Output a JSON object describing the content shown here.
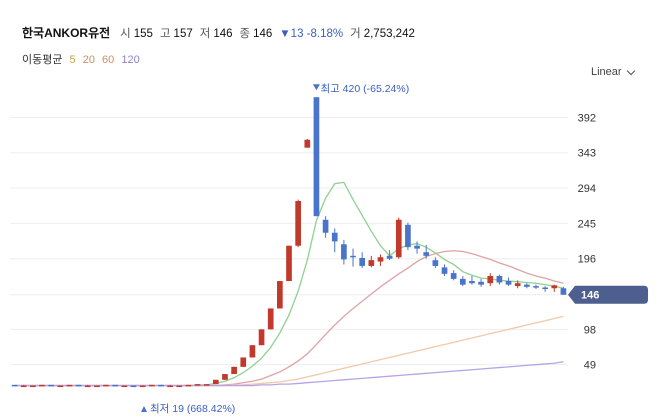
{
  "header": {
    "stock_name": "한국ANKOR유전",
    "open_label": "시",
    "open_value": "155",
    "high_label": "고",
    "high_value": "157",
    "low_label": "저",
    "low_value": "146",
    "close_label": "종",
    "close_value": "146",
    "change_text": "▼13 -8.18%",
    "volume_label": "거",
    "volume_value": "2,753,242"
  },
  "ma_legend": {
    "title": "이동평균",
    "ma5": "5",
    "ma20": "20",
    "ma60": "60",
    "ma120": "120"
  },
  "scale_select": {
    "value": "Linear"
  },
  "colors": {
    "up": "#c0392b",
    "down": "#4a74c9",
    "ma5": "#8fd08f",
    "ma20": "#e0a3a3",
    "ma60": "#f2c9a8",
    "ma120": "#b6a3e6",
    "last_badge": "#4d5f8e"
  },
  "chart_data": {
    "type": "candlestick",
    "y_ticks": [
      49,
      98,
      146,
      196,
      245,
      294,
      343,
      392
    ],
    "ylim": [
      0,
      430
    ],
    "grid": true,
    "last_price": 146,
    "last_price_label": "146",
    "max_annotation": "최고 420 (-65.24%)",
    "min_annotation": "최저 19 (668.42%)",
    "candles": [
      {
        "o": 21,
        "h": 21,
        "l": 20,
        "c": 20
      },
      {
        "o": 20,
        "h": 21,
        "l": 20,
        "c": 20
      },
      {
        "o": 20,
        "h": 20,
        "l": 19,
        "c": 20
      },
      {
        "o": 20,
        "h": 21,
        "l": 20,
        "c": 21
      },
      {
        "o": 21,
        "h": 21,
        "l": 20,
        "c": 20
      },
      {
        "o": 20,
        "h": 20,
        "l": 20,
        "c": 20
      },
      {
        "o": 20,
        "h": 21,
        "l": 20,
        "c": 21
      },
      {
        "o": 21,
        "h": 21,
        "l": 20,
        "c": 20
      },
      {
        "o": 20,
        "h": 21,
        "l": 20,
        "c": 20
      },
      {
        "o": 20,
        "h": 20,
        "l": 20,
        "c": 20
      },
      {
        "o": 20,
        "h": 21,
        "l": 20,
        "c": 21
      },
      {
        "o": 21,
        "h": 21,
        "l": 20,
        "c": 20
      },
      {
        "o": 20,
        "h": 20,
        "l": 19,
        "c": 20
      },
      {
        "o": 20,
        "h": 20,
        "l": 19,
        "c": 19
      },
      {
        "o": 19,
        "h": 20,
        "l": 19,
        "c": 20
      },
      {
        "o": 20,
        "h": 21,
        "l": 20,
        "c": 21
      },
      {
        "o": 21,
        "h": 21,
        "l": 20,
        "c": 20
      },
      {
        "o": 20,
        "h": 21,
        "l": 20,
        "c": 20
      },
      {
        "o": 20,
        "h": 20,
        "l": 20,
        "c": 20
      },
      {
        "o": 20,
        "h": 21,
        "l": 20,
        "c": 21
      },
      {
        "o": 21,
        "h": 22,
        "l": 21,
        "c": 22
      },
      {
        "o": 22,
        "h": 22,
        "l": 22,
        "c": 22
      },
      {
        "o": 22,
        "h": 28,
        "l": 22,
        "c": 28
      },
      {
        "o": 28,
        "h": 36,
        "l": 28,
        "c": 36
      },
      {
        "o": 36,
        "h": 46,
        "l": 36,
        "c": 46
      },
      {
        "o": 46,
        "h": 59,
        "l": 46,
        "c": 59
      },
      {
        "o": 59,
        "h": 76,
        "l": 59,
        "c": 76
      },
      {
        "o": 76,
        "h": 98,
        "l": 76,
        "c": 98
      },
      {
        "o": 98,
        "h": 127,
        "l": 98,
        "c": 127
      },
      {
        "o": 127,
        "h": 165,
        "l": 127,
        "c": 165
      },
      {
        "o": 165,
        "h": 214,
        "l": 165,
        "c": 214
      },
      {
        "o": 214,
        "h": 278,
        "l": 212,
        "c": 276
      },
      {
        "o": 350,
        "h": 362,
        "l": 350,
        "c": 361
      },
      {
        "o": 420,
        "h": 420,
        "l": 255,
        "c": 255
      },
      {
        "o": 250,
        "h": 255,
        "l": 225,
        "c": 232
      },
      {
        "o": 232,
        "h": 238,
        "l": 205,
        "c": 220
      },
      {
        "o": 216,
        "h": 222,
        "l": 188,
        "c": 195
      },
      {
        "o": 200,
        "h": 210,
        "l": 185,
        "c": 198
      },
      {
        "o": 197,
        "h": 205,
        "l": 183,
        "c": 186
      },
      {
        "o": 186,
        "h": 200,
        "l": 184,
        "c": 194
      },
      {
        "o": 192,
        "h": 202,
        "l": 186,
        "c": 198
      },
      {
        "o": 200,
        "h": 208,
        "l": 194,
        "c": 196
      },
      {
        "o": 198,
        "h": 253,
        "l": 196,
        "c": 250
      },
      {
        "o": 243,
        "h": 246,
        "l": 208,
        "c": 212
      },
      {
        "o": 214,
        "h": 220,
        "l": 203,
        "c": 210
      },
      {
        "o": 205,
        "h": 215,
        "l": 196,
        "c": 200
      },
      {
        "o": 194,
        "h": 198,
        "l": 183,
        "c": 186
      },
      {
        "o": 184,
        "h": 188,
        "l": 172,
        "c": 175
      },
      {
        "o": 176,
        "h": 180,
        "l": 166,
        "c": 168
      },
      {
        "o": 168,
        "h": 172,
        "l": 158,
        "c": 160
      },
      {
        "o": 165,
        "h": 172,
        "l": 160,
        "c": 162
      },
      {
        "o": 164,
        "h": 168,
        "l": 157,
        "c": 160
      },
      {
        "o": 162,
        "h": 176,
        "l": 158,
        "c": 172
      },
      {
        "o": 172,
        "h": 174,
        "l": 160,
        "c": 163
      },
      {
        "o": 165,
        "h": 170,
        "l": 158,
        "c": 160
      },
      {
        "o": 158,
        "h": 166,
        "l": 155,
        "c": 162
      },
      {
        "o": 160,
        "h": 162,
        "l": 155,
        "c": 157
      },
      {
        "o": 158,
        "h": 160,
        "l": 154,
        "c": 156
      },
      {
        "o": 156,
        "h": 158,
        "l": 150,
        "c": 155
      },
      {
        "o": 155,
        "h": 160,
        "l": 150,
        "c": 159
      },
      {
        "o": 155,
        "h": 157,
        "l": 146,
        "c": 146
      }
    ],
    "series": [
      {
        "name": "5",
        "values": [
          20,
          20,
          20,
          20,
          20,
          20,
          20,
          20,
          20,
          20,
          20,
          20,
          20,
          20,
          20,
          20,
          20,
          20,
          20,
          20,
          21,
          21,
          23,
          26,
          31,
          38,
          47,
          58,
          73,
          93,
          118,
          151,
          194,
          249,
          280,
          300,
          302,
          278,
          256,
          234,
          214,
          200,
          210,
          215,
          217,
          212,
          204,
          195,
          188,
          178,
          173,
          169,
          168,
          166,
          165,
          164,
          163,
          162,
          160,
          158,
          155
        ]
      },
      {
        "name": "20",
        "values": [
          20,
          20,
          20,
          20,
          20,
          20,
          20,
          20,
          20,
          20,
          20,
          20,
          20,
          20,
          20,
          20,
          20,
          20,
          20,
          20,
          20,
          20,
          20,
          21,
          22,
          24,
          26,
          29,
          34,
          39,
          46,
          54,
          64,
          77,
          91,
          104,
          116,
          127,
          137,
          147,
          157,
          166,
          175,
          183,
          192,
          199,
          203,
          206,
          207,
          206,
          203,
          199,
          195,
          190,
          186,
          181,
          176,
          172,
          169,
          165,
          162
        ]
      },
      {
        "name": "60",
        "values": [
          20,
          20,
          20,
          20,
          20,
          20,
          20,
          20,
          20,
          20,
          20,
          20,
          20,
          20,
          20,
          20,
          20,
          20,
          20,
          20,
          20,
          20,
          20,
          20,
          21,
          21,
          22,
          23,
          24,
          25,
          27,
          29,
          32,
          35,
          38,
          41,
          44,
          47,
          50,
          53,
          56,
          59,
          62,
          65,
          68,
          71,
          74,
          77,
          80,
          83,
          86,
          89,
          92,
          95,
          98,
          101,
          104,
          107,
          110,
          113,
          116
        ]
      },
      {
        "name": "120",
        "values": [
          20,
          20,
          20,
          20,
          20,
          20,
          20,
          20,
          20,
          20,
          20,
          20,
          20,
          20,
          20,
          20,
          20,
          20,
          20,
          20,
          20,
          20,
          20,
          20,
          20,
          20,
          20,
          21,
          21,
          22,
          22,
          23,
          24,
          25,
          26,
          27,
          28,
          29,
          30,
          31,
          32,
          33,
          34,
          35,
          36,
          37,
          38,
          39,
          40,
          41,
          42,
          43,
          44,
          45,
          46,
          47,
          48,
          49,
          50,
          51,
          53
        ]
      }
    ]
  }
}
